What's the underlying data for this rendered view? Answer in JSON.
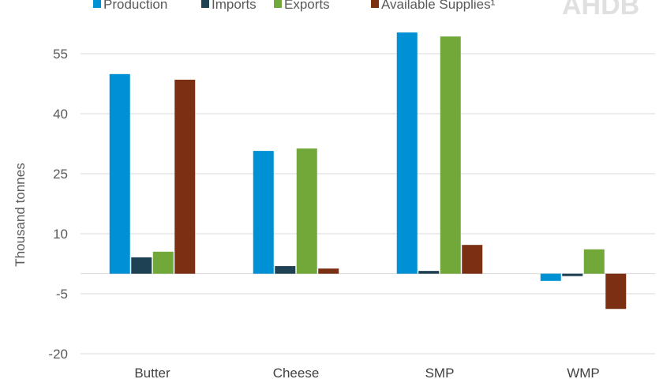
{
  "chart_data": {
    "type": "bar",
    "title": "",
    "xlabel": "",
    "ylabel": "Thousand tonnes",
    "ylim": [
      -20,
      60
    ],
    "yticks": [
      -20,
      -5,
      10,
      25,
      40,
      55
    ],
    "grid": true,
    "legend_position": "top",
    "categories": [
      "Butter",
      "Cheese",
      "SMP",
      "WMP"
    ],
    "series": [
      {
        "name": "Production",
        "color": "#0090d4",
        "values": [
          49.9,
          30.7,
          60.3,
          -1.8
        ]
      },
      {
        "name": "Imports",
        "color": "#1f4154",
        "values": [
          4.1,
          1.9,
          0.7,
          -0.6
        ]
      },
      {
        "name": "Exports",
        "color": "#72a83a",
        "values": [
          5.5,
          31.3,
          59.3,
          6.1
        ]
      },
      {
        "name": "Available Supplies¹",
        "color": "#7b3014",
        "values": [
          48.5,
          1.3,
          7.2,
          -8.8
        ]
      }
    ]
  },
  "logo": "AHDB"
}
